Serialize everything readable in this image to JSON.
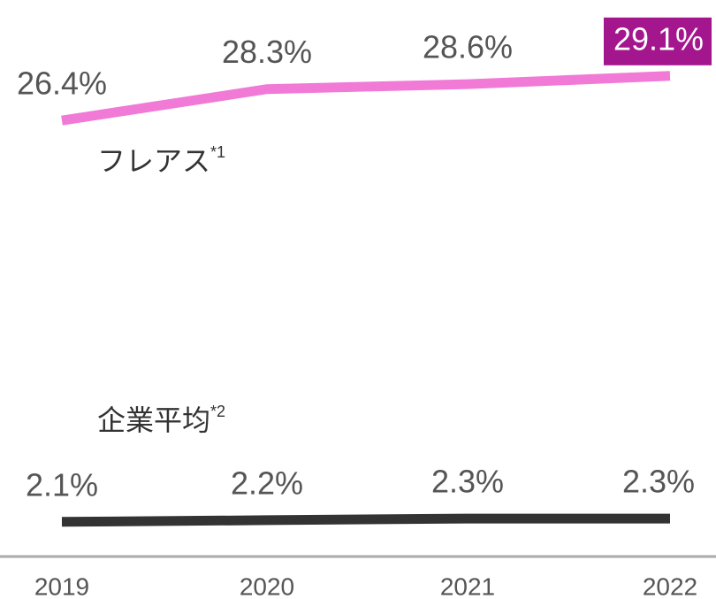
{
  "chart_data": {
    "type": "line",
    "categories": [
      "2019",
      "2020",
      "2021",
      "2022"
    ],
    "ylim": [
      0,
      30
    ],
    "series": [
      {
        "name": "フレアス",
        "note": "*1",
        "color": "#f07ad6",
        "values": [
          26.4,
          28.3,
          28.6,
          29.1
        ],
        "value_labels": [
          "26.4%",
          "28.3%",
          "28.6%",
          "29.1%"
        ],
        "highlight_last": true,
        "highlight_color": "#a3168e"
      },
      {
        "name": "企業平均",
        "note": "*2",
        "color": "#333333",
        "values": [
          2.1,
          2.2,
          2.3,
          2.3
        ],
        "value_labels": [
          "2.1%",
          "2.2%",
          "2.3%",
          "2.3%"
        ],
        "highlight_last": false
      }
    ]
  }
}
